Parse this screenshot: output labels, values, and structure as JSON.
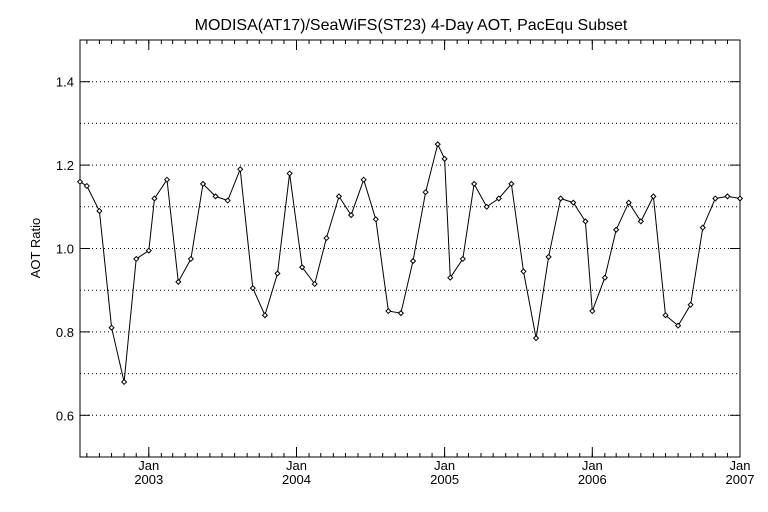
{
  "chart_data": {
    "type": "line",
    "title": "MODISA(AT17)/SeaWiFS(ST23) 4-Day AOT, PacEqu Subset",
    "xlabel": "",
    "ylabel": "AOT Ratio",
    "x_range": [
      "2002-07-15",
      "2007-01-01"
    ],
    "ylim": [
      0.5,
      1.5
    ],
    "yticks": [
      "0.6",
      "0.8",
      "1.0",
      "1.2",
      "1.4"
    ],
    "xticks": [
      {
        "date": "2003-01-01",
        "month": "Jan",
        "year": "2003"
      },
      {
        "date": "2004-01-01",
        "month": "Jan",
        "year": "2004"
      },
      {
        "date": "2005-01-01",
        "month": "Jan",
        "year": "2005"
      },
      {
        "date": "2006-01-01",
        "month": "Jan",
        "year": "2006"
      },
      {
        "date": "2007-01-01",
        "month": "Jan",
        "year": "2007"
      }
    ],
    "grid": "horizontal dotted",
    "series": [
      {
        "color": "#000000",
        "marker": "diamond",
        "x": [
          "2002-07-15",
          "2002-08-01",
          "2002-09-01",
          "2002-10-01",
          "2002-11-01",
          "2002-12-01",
          "2003-01-01",
          "2003-01-15",
          "2003-02-15",
          "2003-03-15",
          "2003-04-15",
          "2003-05-15",
          "2003-06-15",
          "2003-07-15",
          "2003-08-15",
          "2003-09-15",
          "2003-10-15",
          "2003-11-15",
          "2003-12-15",
          "2004-01-15",
          "2004-02-15",
          "2004-03-15",
          "2004-04-15",
          "2004-05-15",
          "2004-06-15",
          "2004-07-15",
          "2004-08-15",
          "2004-09-15",
          "2004-10-15",
          "2004-11-15",
          "2004-12-15",
          "2005-01-01",
          "2005-01-15",
          "2005-02-15",
          "2005-03-15",
          "2005-04-15",
          "2005-05-15",
          "2005-06-15",
          "2005-07-15",
          "2005-08-15",
          "2005-09-15",
          "2005-10-15",
          "2005-11-15",
          "2005-12-15",
          "2006-01-01",
          "2006-02-01",
          "2006-03-01",
          "2006-04-01",
          "2006-05-01",
          "2006-06-01",
          "2006-07-01",
          "2006-08-01",
          "2006-09-01",
          "2006-10-01",
          "2006-11-01",
          "2006-12-01",
          "2007-01-01"
        ],
        "y": [
          1.16,
          1.15,
          1.09,
          0.81,
          0.68,
          0.975,
          0.995,
          1.12,
          1.165,
          0.92,
          0.975,
          1.155,
          1.125,
          1.115,
          1.19,
          0.905,
          0.84,
          0.94,
          1.18,
          0.955,
          0.915,
          1.025,
          1.125,
          1.08,
          1.165,
          1.07,
          0.85,
          0.845,
          0.97,
          1.135,
          1.25,
          1.215,
          0.93,
          0.975,
          1.155,
          1.1,
          1.12,
          1.155,
          0.945,
          0.785,
          0.98,
          1.12,
          1.11,
          1.065,
          0.85,
          0.93,
          1.045,
          1.11,
          1.065,
          1.125,
          0.84,
          0.815,
          0.865,
          1.05,
          1.12,
          1.125,
          1.12
        ]
      }
    ]
  }
}
